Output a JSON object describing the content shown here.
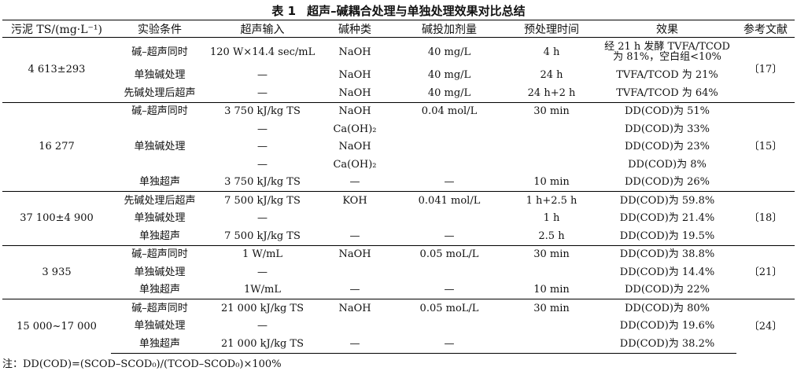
{
  "table_title": {
    "number": "表 1",
    "text": "超声–碱耦合处理与单独处理效果对比总结"
  },
  "headers": [
    "污泥 TS/(mg·L⁻¹)",
    "实验条件",
    "超声输入",
    "碱种类",
    "碱投加剂量",
    "预处理时间",
    "效果",
    "参考文献"
  ],
  "groups": [
    {
      "ts": "4 613±293",
      "ref": "〔17〕",
      "rows": [
        {
          "cond": "碱–超声同时",
          "us": "120 W×14.4 sec/mL",
          "alkali": "NaOH",
          "dose": "40 mg/L",
          "time": "4 h",
          "effect": "经 21 h 发酵 TVFA/TCOD 为 81%，空白组<10%"
        },
        {
          "cond": "单独碱处理",
          "us": "—",
          "alkali": "NaOH",
          "dose": "40 mg/L",
          "time": "24 h",
          "effect": "TVFA/TCOD 为 21%"
        },
        {
          "cond": "先碱处理后超声",
          "us": "—",
          "alkali": "NaOH",
          "dose": "40 mg/L",
          "time": "24 h+2 h",
          "effect": "TVFA/TCOD 为 64%"
        }
      ]
    },
    {
      "ts": "16 277",
      "ref": "〔15〕",
      "rows": [
        {
          "cond": "碱–超声同时",
          "us": "3 750 kJ/kg TS",
          "alkali": "NaOH",
          "dose": "0.04 mol/L",
          "time": "30 min",
          "effect": "DD(COD)为 51%"
        },
        {
          "cond": "",
          "us": "—",
          "alkali": "Ca(OH)₂",
          "dose": "",
          "time": "",
          "effect": "DD(COD)为 33%"
        },
        {
          "cond": "单独碱处理",
          "us": "—",
          "alkali": "NaOH",
          "dose": "",
          "time": "",
          "effect": "DD(COD)为 23%"
        },
        {
          "cond": "",
          "us": "—",
          "alkali": "Ca(OH)₂",
          "dose": "",
          "time": "",
          "effect": "DD(COD)为 8%"
        },
        {
          "cond": "单独超声",
          "us": "3 750 kJ/kg TS",
          "alkali": "—",
          "dose": "—",
          "time": "10 min",
          "effect": "DD(COD)为 26%"
        }
      ]
    },
    {
      "ts": "37 100±4 900",
      "ref": "〔18〕",
      "rows": [
        {
          "cond": "先碱处理后超声",
          "us": "7 500 kJ/kg TS",
          "alkali": "KOH",
          "dose": "0.041 mol/L",
          "time": "1 h+2.5 h",
          "effect": "DD(COD)为 59.8%"
        },
        {
          "cond": "单独碱处理",
          "us": "—",
          "alkali": "",
          "dose": "",
          "time": "1 h",
          "effect": "DD(COD)为 21.4%"
        },
        {
          "cond": "单独超声",
          "us": "7 500 kJ/kg TS",
          "alkali": "—",
          "dose": "—",
          "time": "2.5 h",
          "effect": "DD(COD)为 19.5%"
        }
      ]
    },
    {
      "ts": "3 935",
      "ref": "〔21〕",
      "rows": [
        {
          "cond": "碱–超声同时",
          "us": "1 W/mL",
          "alkali": "NaOH",
          "dose": "0.05 moL/L",
          "time": "30 min",
          "effect": "DD(COD)为 38.8%"
        },
        {
          "cond": "单独碱处理",
          "us": "—",
          "alkali": "",
          "dose": "",
          "time": "",
          "effect": "DD(COD)为 14.4%"
        },
        {
          "cond": "单独超声",
          "us": "1W/mL",
          "alkali": "—",
          "dose": "—",
          "time": "10 min",
          "effect": "DD(COD)为 22%"
        }
      ]
    },
    {
      "ts": "15 000~17 000",
      "ref": "〔24〕",
      "rows": [
        {
          "cond": "碱–超声同时",
          "us": "21 000 kJ/kg TS",
          "alkali": "NaOH",
          "dose": "0.05 moL/L",
          "time": "30 min",
          "effect": "DD(COD)为 80%"
        },
        {
          "cond": "单独碱处理",
          "us": "—",
          "alkali": "",
          "dose": "",
          "time": "",
          "effect": "DD(COD)为 19.6%"
        },
        {
          "cond": "单独超声",
          "us": "21 000 kJ/kg TS",
          "alkali": "—",
          "dose": "—",
          "time": "",
          "effect": "DD(COD)为 38.2%"
        }
      ]
    }
  ],
  "note": "注：DD(COD)=(SCOD–SCOD₀)/(TCOD–SCOD₀)×100%"
}
